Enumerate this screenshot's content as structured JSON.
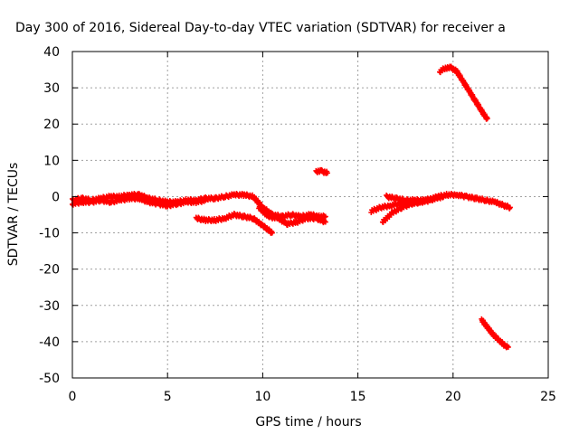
{
  "chart_data": {
    "type": "scatter",
    "title": "Day 300 of 2016, Sidereal Day-to-day VTEC variation (SDTVAR) for receiver a",
    "xlabel": "GPS time / hours",
    "ylabel": "SDTVAR / TECUs",
    "xlim": [
      0,
      25
    ],
    "ylim": [
      -50,
      40
    ],
    "xticks": [
      0,
      5,
      10,
      15,
      20,
      25
    ],
    "yticks": [
      -50,
      -40,
      -30,
      -20,
      -10,
      0,
      10,
      20,
      30,
      40
    ],
    "xtick_labels": [
      "0",
      "5",
      "10",
      "15",
      "20",
      "25"
    ],
    "ytick_labels": [
      "-50",
      "-40",
      "-30",
      "-20",
      "-10",
      "0",
      "10",
      "20",
      "30",
      "40"
    ],
    "grid": true,
    "legend": "none",
    "marker": "plus",
    "color": "#ff0000",
    "series": [
      {
        "x": [
          0.0,
          0.5,
          1.0,
          1.5,
          2.0,
          2.5,
          3.0,
          3.5,
          4.0,
          4.5,
          5.0,
          5.5,
          6.0,
          6.5,
          7.0,
          7.5,
          8.0,
          8.5,
          9.0,
          9.5,
          10.0,
          10.5,
          11.0,
          11.5,
          12.0,
          12.5,
          13.0,
          13.3
        ],
        "y": [
          -1.0,
          -0.5,
          -1.0,
          -0.5,
          0.0,
          0.0,
          0.5,
          0.5,
          -0.5,
          -1.0,
          -1.5,
          -1.5,
          -1.0,
          -1.0,
          -0.5,
          -0.5,
          0.0,
          0.5,
          0.5,
          0.0,
          -3.0,
          -5.0,
          -5.5,
          -5.0,
          -5.5,
          -5.0,
          -5.5,
          -5.5
        ]
      },
      {
        "x": [
          0.0,
          0.5,
          1.0,
          1.5,
          2.0,
          2.5,
          3.0,
          3.5,
          4.0,
          4.5,
          5.0,
          5.5,
          6.0,
          6.5,
          7.0
        ],
        "y": [
          -2.0,
          -1.5,
          -1.5,
          -1.0,
          -1.5,
          -1.0,
          -0.5,
          -0.5,
          -1.5,
          -2.0,
          -2.5,
          -2.0,
          -1.5,
          -1.5,
          -1.0
        ]
      },
      {
        "x": [
          6.5,
          7.0,
          7.5,
          8.0,
          8.5,
          9.0,
          9.5,
          10.0,
          10.5
        ],
        "y": [
          -6.0,
          -6.5,
          -6.5,
          -6.0,
          -5.0,
          -5.5,
          -6.0,
          -8.0,
          -10.0
        ]
      },
      {
        "x": [
          9.8,
          10.3,
          10.8,
          11.3,
          11.8,
          12.3,
          12.8,
          13.3
        ],
        "y": [
          -3.0,
          -5.5,
          -6.0,
          -7.5,
          -7.0,
          -6.0,
          -6.0,
          -7.0
        ]
      },
      {
        "x": [
          12.8,
          13.1,
          13.4
        ],
        "y": [
          7.0,
          7.0,
          6.5
        ]
      },
      {
        "x": [
          15.7,
          16.2,
          16.7,
          17.2,
          17.7,
          18.2,
          18.7,
          19.2,
          19.7,
          20.2,
          20.7,
          21.2,
          21.7,
          22.2,
          22.7,
          23.0
        ],
        "y": [
          -4.0,
          -3.0,
          -2.5,
          -2.0,
          -2.0,
          -1.5,
          -1.0,
          0.0,
          0.5,
          0.5,
          0.0,
          -0.5,
          -1.0,
          -1.5,
          -2.5,
          -3.0
        ]
      },
      {
        "x": [
          16.3,
          16.8,
          17.3,
          17.8,
          18.3,
          18.8,
          19.3
        ],
        "y": [
          -7.0,
          -4.5,
          -3.0,
          -2.0,
          -1.5,
          -1.0,
          0.0
        ]
      },
      {
        "x": [
          16.5,
          17.0,
          17.5,
          18.0,
          18.5,
          19.0,
          19.5
        ],
        "y": [
          0.0,
          -0.5,
          -1.0,
          -1.0,
          -1.0,
          -0.5,
          0.0
        ]
      },
      {
        "x": [
          19.3,
          19.6,
          19.9,
          20.2,
          20.5,
          20.8,
          21.1,
          21.4,
          21.7,
          21.8
        ],
        "y": [
          34.5,
          35.5,
          35.5,
          34.5,
          32.0,
          29.5,
          27.0,
          24.5,
          22.0,
          21.5
        ]
      },
      {
        "x": [
          21.5,
          21.8,
          22.1,
          22.4,
          22.7,
          22.9
        ],
        "y": [
          -34.0,
          -36.0,
          -38.0,
          -39.5,
          -41.0,
          -41.5
        ]
      }
    ]
  }
}
